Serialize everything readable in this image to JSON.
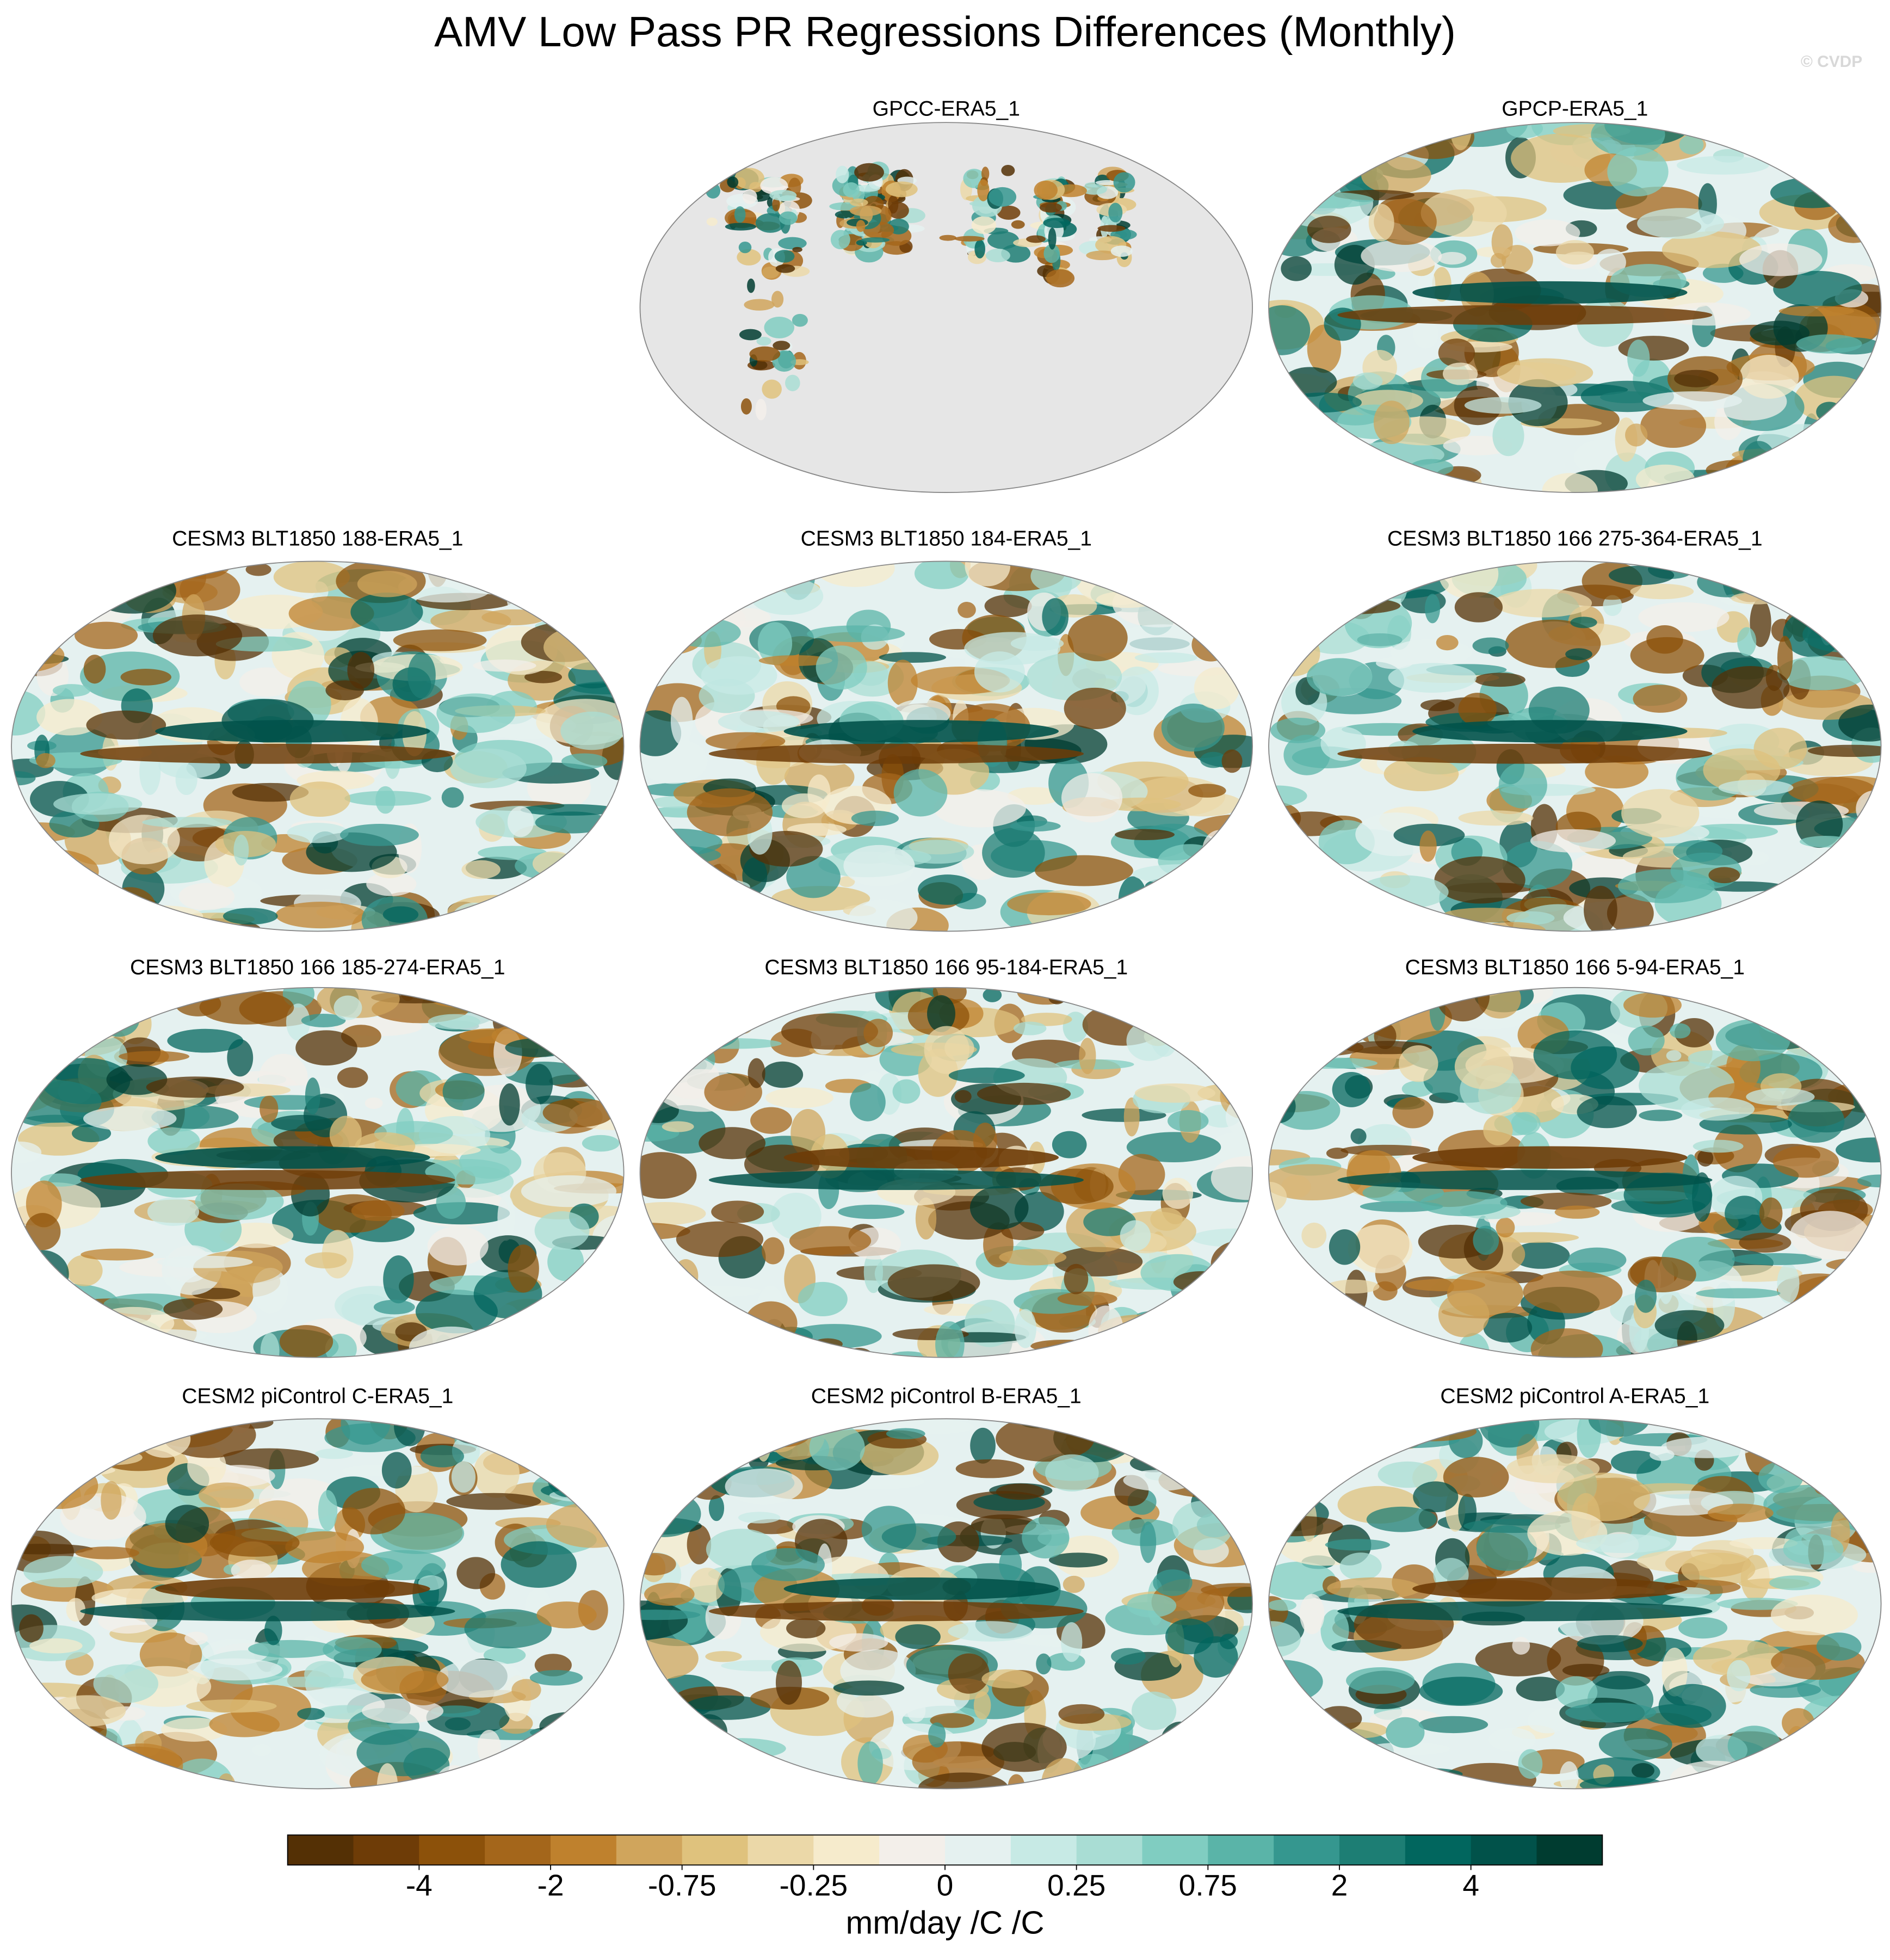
{
  "title": "AMV Low Pass PR Regressions Differences (Monthly)",
  "watermark": "© CVDP",
  "panels": [
    {
      "title": "GPCC-ERA5_1",
      "land_only": true
    },
    {
      "title": "GPCP-ERA5_1"
    },
    {
      "title": "CESM3 BLT1850 188-ERA5_1"
    },
    {
      "title": "CESM3 BLT1850 184-ERA5_1"
    },
    {
      "title": "CESM3 BLT1850 166 275-364-ERA5_1"
    },
    {
      "title": "CESM3 BLT1850 166 185-274-ERA5_1"
    },
    {
      "title": "CESM3 BLT1850 166 95-184-ERA5_1"
    },
    {
      "title": "CESM3 BLT1850 166 5-94-ERA5_1"
    },
    {
      "title": "CESM2 piControl C-ERA5_1"
    },
    {
      "title": "CESM2 piControl B-ERA5_1"
    },
    {
      "title": "CESM2 piControl A-ERA5_1"
    }
  ],
  "colorbar": {
    "colors": [
      "#543005",
      "#6e3c07",
      "#8c510a",
      "#a4661b",
      "#bf812d",
      "#d0a55c",
      "#dfc27d",
      "#ebd8a8",
      "#f6ebcc",
      "#f3efea",
      "#e5f1f0",
      "#c7eae5",
      "#a9ddd4",
      "#80cdc1",
      "#5ab4a8",
      "#35978f",
      "#1d7e74",
      "#01665e",
      "#01524a",
      "#003c30"
    ],
    "ticks": [
      -4,
      -2,
      -0.75,
      -0.25,
      0,
      0.25,
      0.75,
      2,
      4
    ],
    "label": "mm/day /C /C"
  }
}
